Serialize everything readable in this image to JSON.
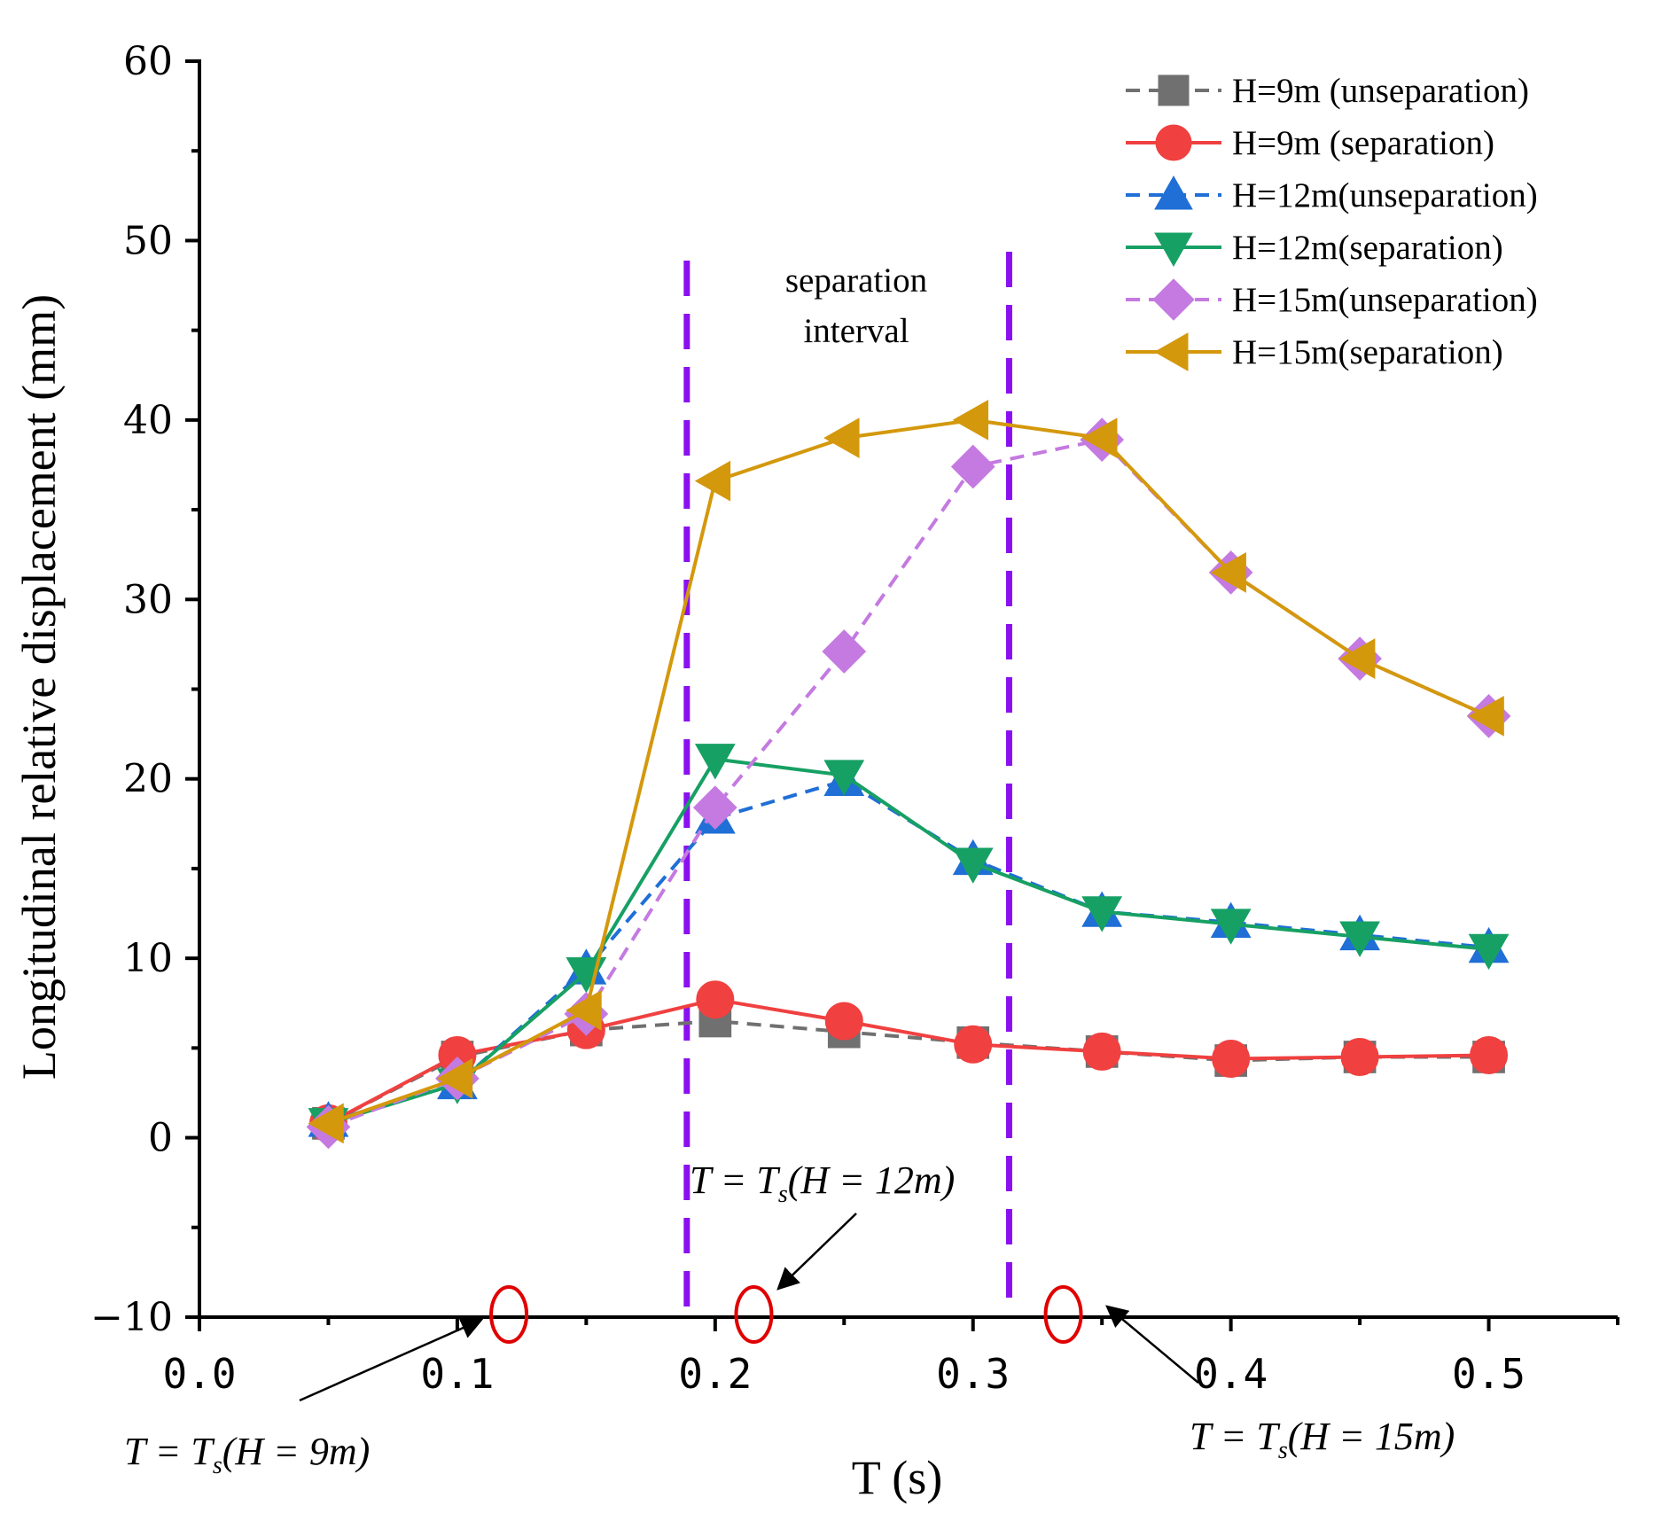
{
  "chart_data": {
    "type": "line",
    "xlabel": "T (s)",
    "ylabel": "Longitudinal relative displacement (mm)",
    "xlim": [
      0.0,
      0.55
    ],
    "ylim": [
      -10,
      60
    ],
    "x_ticks": [
      0.0,
      0.1,
      0.2,
      0.3,
      0.4,
      0.5
    ],
    "x_tick_labels": [
      "0.0",
      "0.1",
      "0.2",
      "0.3",
      "0.4",
      "0.5"
    ],
    "y_ticks": [
      -10,
      0,
      10,
      20,
      30,
      40,
      50,
      60
    ],
    "y_tick_labels": [
      "−10",
      "0",
      "10",
      "20",
      "30",
      "40",
      "50",
      "60"
    ],
    "legend_position": "top-right",
    "x": [
      0.05,
      0.1,
      0.15,
      0.2,
      0.25,
      0.3,
      0.35,
      0.4,
      0.45,
      0.5
    ],
    "series": [
      {
        "name": "H=9m (unseparation)",
        "color": "#707070",
        "dash": true,
        "marker": "square",
        "values": [
          0.8,
          4.5,
          6.0,
          6.5,
          5.9,
          5.3,
          4.8,
          4.3,
          4.5,
          4.5
        ]
      },
      {
        "name": "H=9m (separation)",
        "color": "#f04040",
        "dash": false,
        "marker": "circle",
        "values": [
          0.8,
          4.6,
          6.0,
          7.7,
          6.5,
          5.2,
          4.8,
          4.4,
          4.5,
          4.6
        ]
      },
      {
        "name": "H=12m(unseparation)",
        "color": "#1f6fd6",
        "dash": true,
        "marker": "triangle-up",
        "values": [
          0.9,
          3.0,
          9.4,
          17.8,
          19.9,
          15.5,
          12.6,
          12.0,
          11.3,
          10.6
        ]
      },
      {
        "name": "H=12m(separation)",
        "color": "#17a064",
        "dash": false,
        "marker": "triangle-down",
        "values": [
          0.8,
          3.0,
          9.2,
          21.1,
          20.2,
          15.3,
          12.6,
          11.9,
          11.2,
          10.5
        ]
      },
      {
        "name": "H=15m(unseparation)",
        "color": "#c47ae0",
        "dash": true,
        "marker": "diamond",
        "values": [
          0.6,
          3.3,
          6.9,
          18.4,
          27.1,
          37.4,
          38.9,
          31.5,
          26.7,
          23.5
        ]
      },
      {
        "name": "H=15m(separation)",
        "color": "#d4980c",
        "dash": false,
        "marker": "triangle-left",
        "values": [
          0.8,
          3.3,
          7.1,
          36.6,
          39.0,
          40.0,
          39.0,
          31.5,
          26.7,
          23.5
        ]
      }
    ],
    "separation_interval": {
      "label_line1": "separation",
      "label_line2": "interval",
      "x_start": 0.189,
      "x_end": 0.314,
      "color": "#8a10f0"
    },
    "annotations": [
      {
        "text": "T = T",
        "sub": "s",
        "suffix": "(H = 9m)",
        "x_marker": 0.12,
        "color": "#e00000"
      },
      {
        "text": "T = T",
        "sub": "s",
        "suffix": "(H = 12m)",
        "x_marker": 0.215,
        "color": "#e00000"
      },
      {
        "text": "T = T",
        "sub": "s",
        "suffix": "(H = 15m)",
        "x_marker": 0.335,
        "color": "#e00000"
      }
    ]
  }
}
